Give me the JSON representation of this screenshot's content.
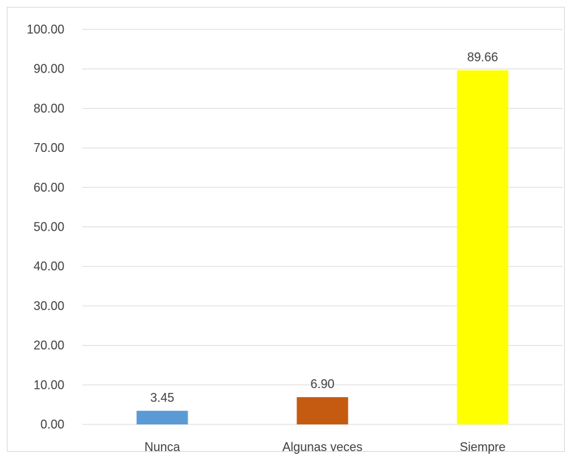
{
  "chart_data": {
    "type": "bar",
    "title": "",
    "xlabel": "",
    "ylabel": "",
    "categories": [
      "Nunca",
      "Algunas veces",
      "Siempre"
    ],
    "values": [
      3.45,
      6.9,
      89.66
    ],
    "data_labels": [
      "3.45",
      "6.90",
      "89.66"
    ],
    "bar_colors": [
      "#5b9bd5",
      "#c55a11",
      "#ffff00"
    ],
    "ylim": [
      0,
      100
    ],
    "yticks": [
      0,
      10,
      20,
      30,
      40,
      50,
      60,
      70,
      80,
      90,
      100
    ],
    "ytick_labels": [
      "0.00",
      "10.00",
      "20.00",
      "30.00",
      "40.00",
      "50.00",
      "60.00",
      "70.00",
      "80.00",
      "90.00",
      "100.00"
    ],
    "grid": true,
    "gridline_color": "#d9d9d9",
    "legend": "none"
  }
}
